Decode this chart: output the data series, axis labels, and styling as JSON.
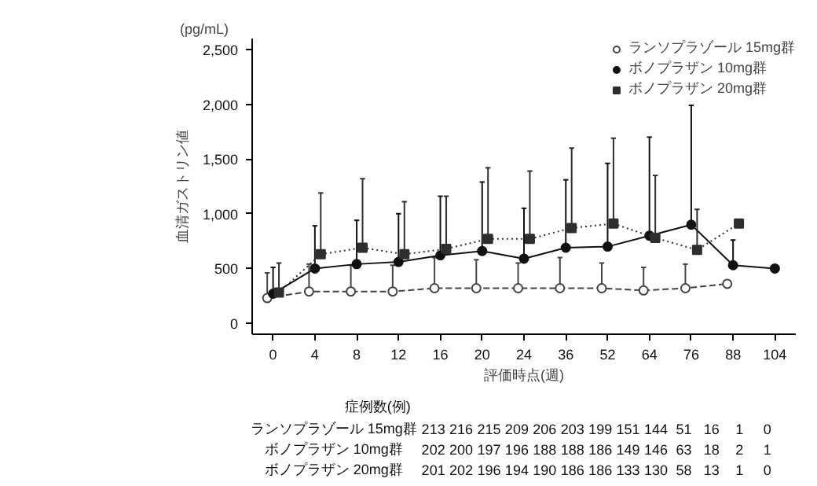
{
  "chart_data": {
    "type": "line",
    "xlabel": "評価時点(週)",
    "ylabel": "血清ガストリン値",
    "categories": [
      "0",
      "4",
      "8",
      "12",
      "16",
      "20",
      "24",
      "36",
      "52",
      "64",
      "76",
      "88",
      "104"
    ],
    "ylim": [
      -100,
      2600
    ],
    "yticks": [
      {
        "value": 0,
        "label": "0"
      },
      {
        "value": 500,
        "label": "500"
      },
      {
        "value": 1000,
        "label": "1,000"
      },
      {
        "value": 1500,
        "label": "1,500"
      },
      {
        "value": 2000,
        "label": "2,000"
      },
      {
        "value": 2500,
        "label": "2,500"
      }
    ],
    "legend": "top right",
    "grid": false,
    "series": [
      {
        "name": "ランソプラゾール 15mg群",
        "color": "#444444",
        "marker": "circle",
        "line_style": "dashed",
        "values": [
          230,
          290,
          290,
          290,
          320,
          320,
          320,
          320,
          320,
          300,
          320,
          360,
          null
        ],
        "errors": [
          [
            230,
            460
          ],
          [
            290,
            540
          ],
          [
            290,
            530
          ],
          [
            290,
            530
          ],
          [
            320,
            600
          ],
          [
            320,
            580
          ],
          [
            320,
            550
          ],
          [
            320,
            600
          ],
          [
            320,
            550
          ],
          [
            300,
            510
          ],
          [
            320,
            540
          ],
          null,
          null
        ]
      },
      {
        "name": "ボノプラザン 10mg群",
        "color": "#111111",
        "marker": "circle",
        "line_style": "solid",
        "values": [
          270,
          500,
          540,
          560,
          620,
          660,
          590,
          690,
          700,
          800,
          900,
          530,
          500
        ],
        "errors": [
          [
            270,
            510
          ],
          [
            500,
            890
          ],
          [
            540,
            940
          ],
          [
            560,
            1000
          ],
          [
            620,
            1160
          ],
          [
            660,
            1290
          ],
          [
            590,
            1050
          ],
          [
            690,
            1310
          ],
          [
            700,
            1460
          ],
          [
            800,
            1700
          ],
          [
            900,
            1990
          ],
          [
            530,
            760
          ],
          null
        ]
      },
      {
        "name": "ボノプラザン 20mg群",
        "color": "#2e2e2e",
        "marker": "square",
        "line_style": "dotted",
        "values": [
          280,
          630,
          690,
          630,
          680,
          770,
          770,
          870,
          910,
          780,
          670,
          910,
          null
        ],
        "errors": [
          [
            280,
            550
          ],
          [
            630,
            1190
          ],
          [
            690,
            1320
          ],
          [
            630,
            1110
          ],
          [
            680,
            1160
          ],
          [
            770,
            1420
          ],
          [
            770,
            1390
          ],
          [
            870,
            1600
          ],
          [
            910,
            1690
          ],
          [
            780,
            1350
          ],
          [
            670,
            1040
          ],
          null,
          null
        ]
      }
    ],
    "annotations": [
      "(pg/mL)",
      "症例数(例)",
      "ランソプラゾール 15mg群",
      "213",
      "216",
      "215",
      "209",
      "206",
      "203",
      "199",
      "151",
      "144",
      "51",
      "16",
      "1",
      "0",
      "ボノプラザン 10mg群",
      "202",
      "200",
      "197",
      "196",
      "188",
      "188",
      "186",
      "149",
      "146",
      "63",
      "18",
      "2",
      "1",
      "ボノプラザン 20mg群",
      "201",
      "202",
      "196",
      "194",
      "190",
      "186",
      "186",
      "133",
      "130",
      "58",
      "13",
      "1",
      "0"
    ]
  }
}
